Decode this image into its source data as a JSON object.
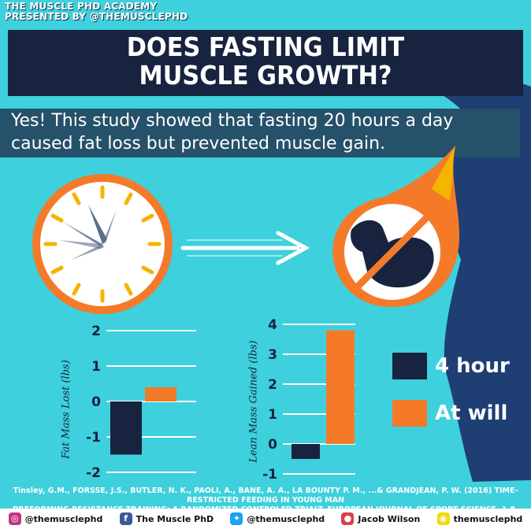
{
  "brand": {
    "line1": "THE MUSCLE PHD ACADEMY",
    "line2": "PRESENTED BY @THEMUSCLEPHD"
  },
  "title": {
    "line1": "DOES FASTING LIMIT",
    "line2": "MUSCLE GROWTH?"
  },
  "claim": {
    "line1": "Yes! This study showed that fasting 20 hours a day",
    "line2": "caused fat loss but prevented muscle gain."
  },
  "colors": {
    "background": "#3ed0dc",
    "navy": "#17233f",
    "orange": "#f47a2a",
    "band": "#26516a",
    "silhouette": "#1f3e74"
  },
  "icons": [
    "clock-icon",
    "arrow-icon",
    "flexed-arm-icon",
    "no-sign-icon",
    "flame-icon",
    "bodybuilder-silhouette-icon"
  ],
  "chart_data": [
    {
      "type": "bar",
      "ylabel": "Fat Mass Lost (lbs)",
      "ylim": [
        -2,
        2
      ],
      "yticks": [
        "2",
        "1",
        "0",
        "-1",
        "-2"
      ],
      "categories": [
        "4 hour",
        "At will"
      ],
      "values": [
        -1.5,
        0.4
      ],
      "colors": [
        "#17233f",
        "#f47a2a"
      ]
    },
    {
      "type": "bar",
      "ylabel": "Lean Mass Gained (lbs)",
      "ylim": [
        -1,
        4
      ],
      "yticks": [
        "4",
        "3",
        "2",
        "1",
        "0",
        "-1"
      ],
      "categories": [
        "4 hour",
        "At will"
      ],
      "values": [
        -0.5,
        3.8
      ],
      "colors": [
        "#17233f",
        "#f47a2a"
      ]
    }
  ],
  "legend": [
    {
      "label": "4 hour",
      "color": "#17233f"
    },
    {
      "label": "At will",
      "color": "#f47a2a"
    }
  ],
  "citation": {
    "line1": "Tinsley, G.M., FORSSE, J.S., BUTLER, N. K., PAOLI, A., BANE, A. A., LA BOUNTY P. M., ...& GRANDJEAN, P. W. (2016) TIME-RESTRICTED FEEDING IN YOUNG MAN",
    "line2": "PREFORMING RESISTANCE TRAINING: A RANDOMIZED CONTROLED TRIALT. EUROPEAN JOURNAL OF SPORT SCIENCE, 1-8."
  },
  "social": [
    {
      "icon": "instagram-icon",
      "label": "@themusclephd",
      "color": "#c13584",
      "glyph": "◎"
    },
    {
      "icon": "facebook-icon",
      "label": "The Muscle PhD",
      "color": "#3b5998",
      "glyph": "f"
    },
    {
      "icon": "twitter-icon",
      "label": "@themusclephd",
      "color": "#1da1f2",
      "glyph": "✦"
    },
    {
      "icon": "periscope-icon",
      "label": "Jacob Wilson",
      "color": "#d8414a",
      "glyph": "●"
    },
    {
      "icon": "snapchat-icon",
      "label": "themusclephd",
      "color": "#f5d90a",
      "glyph": "◉"
    }
  ]
}
